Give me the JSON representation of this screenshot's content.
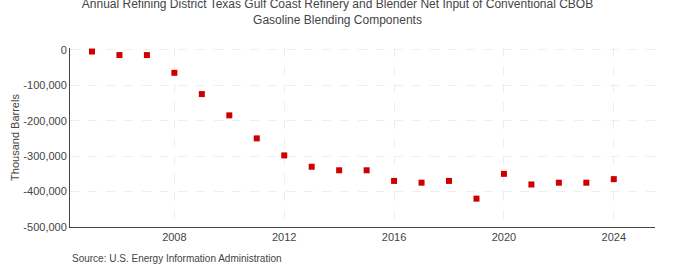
{
  "chart_data": {
    "type": "scatter",
    "title": "Annual Refining District Texas Gulf Coast Refinery and Blender Net Input of Conventional CBOB\nGasoline Blending Components",
    "ylabel": "Thousand Barrels",
    "annotations": [
      "Source: U.S. Energy Information Administration"
    ],
    "x": [
      2005,
      2006,
      2007,
      2008,
      2009,
      2010,
      2011,
      2012,
      2013,
      2014,
      2015,
      2016,
      2017,
      2018,
      2019,
      2020,
      2021,
      2022,
      2023,
      2024
    ],
    "values": [
      -5000,
      -15000,
      -15000,
      -65000,
      -125000,
      -185000,
      -250000,
      -298000,
      -330000,
      -340000,
      -340000,
      -370000,
      -375000,
      -370000,
      -420000,
      -350000,
      -380000,
      -375000,
      -375000,
      -365000
    ],
    "color": "#cc0000",
    "marker": "square",
    "xlim": [
      2004.2,
      2025.5
    ],
    "ylim": [
      -500000,
      5000
    ],
    "xticks": [
      2008,
      2012,
      2016,
      2020,
      2024
    ],
    "yticks": [
      0,
      {
        "value": -100000,
        "label": "-100,000"
      },
      {
        "value": -200000,
        "label": "-200,000"
      },
      {
        "value": -300000,
        "label": "-300,000"
      },
      {
        "value": -400000,
        "label": "-400,000"
      },
      {
        "value": -500000,
        "label": "-500,000"
      }
    ],
    "grid": true
  }
}
